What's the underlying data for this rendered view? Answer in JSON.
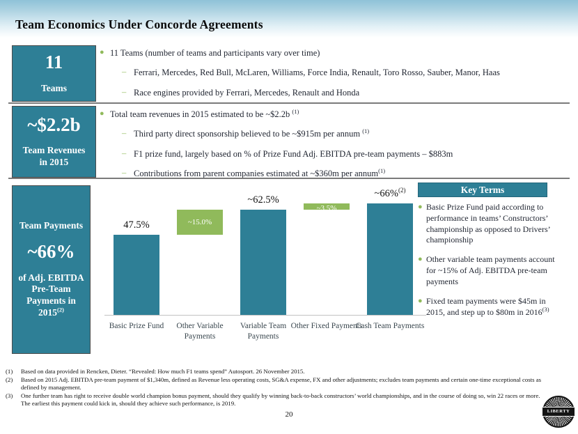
{
  "colors": {
    "teal": "#2e7f96",
    "green": "#90ba5b",
    "divider": "#7a7a7a"
  },
  "slide": {
    "title": "Team Economics Under Concorde Agreements",
    "page_number": "20"
  },
  "sections": [
    {
      "box": {
        "big": "11",
        "small": "Teams"
      },
      "bullet": {
        "text": "11 Teams (number of teams and participants vary over time)",
        "sup": ""
      },
      "subs": [
        {
          "text": "Ferrari, Mercedes, Red Bull, McLaren, Williams, Force India, Renault, Toro Rosso, Sauber, Manor, Haas",
          "sup": ""
        },
        {
          "text": "Race engines provided by Ferrari, Mercedes, Renault and Honda",
          "sup": ""
        }
      ]
    },
    {
      "box": {
        "big": "~$2.2b",
        "small_line1": "Team Revenues",
        "small_line2": "in 2015"
      },
      "bullet": {
        "text": "Total team revenues in 2015 estimated to be ~$2.2b ",
        "sup": "(1)"
      },
      "subs": [
        {
          "text": "Third party direct sponsorship believed to be ~$915m per annum ",
          "sup": "(1)"
        },
        {
          "text": "F1 prize fund, largely based on % of Prize Fund Adj. EBITDA pre-team payments – $883m",
          "sup": ""
        },
        {
          "text": "Contributions from parent companies estimated at ~$360m per annum",
          "sup": "(1)"
        }
      ]
    },
    {
      "box": {
        "top": "Team Payments",
        "big": "~66%",
        "bottom": "of Adj. EBITDA Pre-Team Payments in 2015",
        "bottom_sup": "(2)"
      }
    }
  ],
  "chart_data": {
    "type": "bar",
    "subtype": "waterfall",
    "title": "",
    "xlabel": "",
    "ylabel": "",
    "unit": "% of Adj. EBITDA pre-team payments",
    "ylim": [
      0,
      78
    ],
    "grid": false,
    "legend": false,
    "categories": [
      "Basic Prize Fund",
      "Other Variable Payments",
      "Variable Team Payments",
      "Other Fixed Payments",
      "Cash Team Payments"
    ],
    "bars": [
      {
        "category": "Basic Prize Fund",
        "start": 0,
        "end": 47.5,
        "label": "47.5%",
        "label_sup": "",
        "color": "teal",
        "label_position": "above"
      },
      {
        "category": "Other Variable Payments",
        "start": 47.5,
        "end": 62.5,
        "label": "~15.0%",
        "label_sup": "",
        "color": "green",
        "label_position": "inside"
      },
      {
        "category": "Variable Team Payments",
        "start": 0,
        "end": 62.5,
        "label": "~62.5%",
        "label_sup": "",
        "color": "teal",
        "label_position": "above"
      },
      {
        "category": "Other Fixed Payments",
        "start": 62.5,
        "end": 66,
        "label": "~3.5%",
        "label_sup": "",
        "color": "green",
        "label_position": "inside"
      },
      {
        "category": "Cash Team Payments",
        "start": 0,
        "end": 66,
        "label": "~66%",
        "label_sup": "(2)",
        "color": "teal",
        "label_position": "above"
      }
    ]
  },
  "key_terms": {
    "title": "Key Terms",
    "bullets": [
      {
        "text": "Basic Prize Fund paid according to performance in teams’ Constructors’ championship as opposed to Drivers’ championship",
        "sup": ""
      },
      {
        "text": "Other variable team payments account for ~15% of Adj. EBITDA pre-team payments",
        "sup": ""
      },
      {
        "text": "Fixed team payments were $45m in 2015, and step up to $80m in 2016",
        "sup": "(3)"
      }
    ]
  },
  "footnotes": [
    {
      "num": "(1)",
      "text": "Based on data provided in Rencken, Dieter. “Revealed: How much F1 teams spend” Autosport. 26 November 2015."
    },
    {
      "num": "(2)",
      "text": "Based on 2015 Adj. EBITDA pre-team payment of $1,340m, defined as Revenue less operating costs, SG&A expense, FX and other adjustments; excludes team payments and certain one-time exceptional costs as defined by management."
    },
    {
      "num": "(3)",
      "text": "One further team has right to receive double world champion bonus payment, should they qualify by winning back-to-back constructors’ world championships, and in the course of doing so, win 22 races or more. The earliest this payment could kick in, should they achieve such performance, is 2019."
    }
  ],
  "logo": {
    "text": "LIBERTY"
  }
}
